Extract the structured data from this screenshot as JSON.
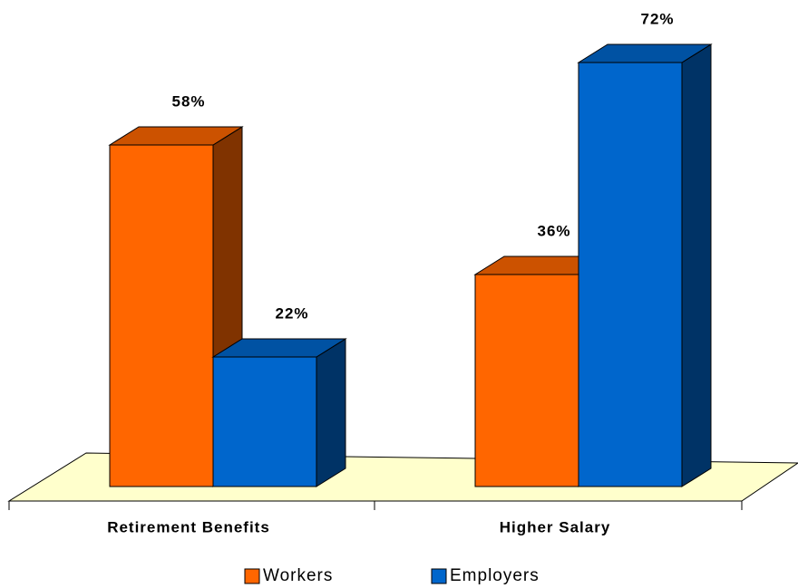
{
  "chart_data": {
    "type": "bar",
    "categories": [
      "Retirement Benefits",
      "Higher Salary"
    ],
    "series": [
      {
        "name": "Workers",
        "color": "#ff6600",
        "values": [
          58,
          36
        ],
        "value_labels": [
          "58%",
          "36%"
        ]
      },
      {
        "name": "Employers",
        "color": "#0066cc",
        "values": [
          22,
          72
        ],
        "value_labels": [
          "22%",
          "72%"
        ]
      }
    ]
  }
}
